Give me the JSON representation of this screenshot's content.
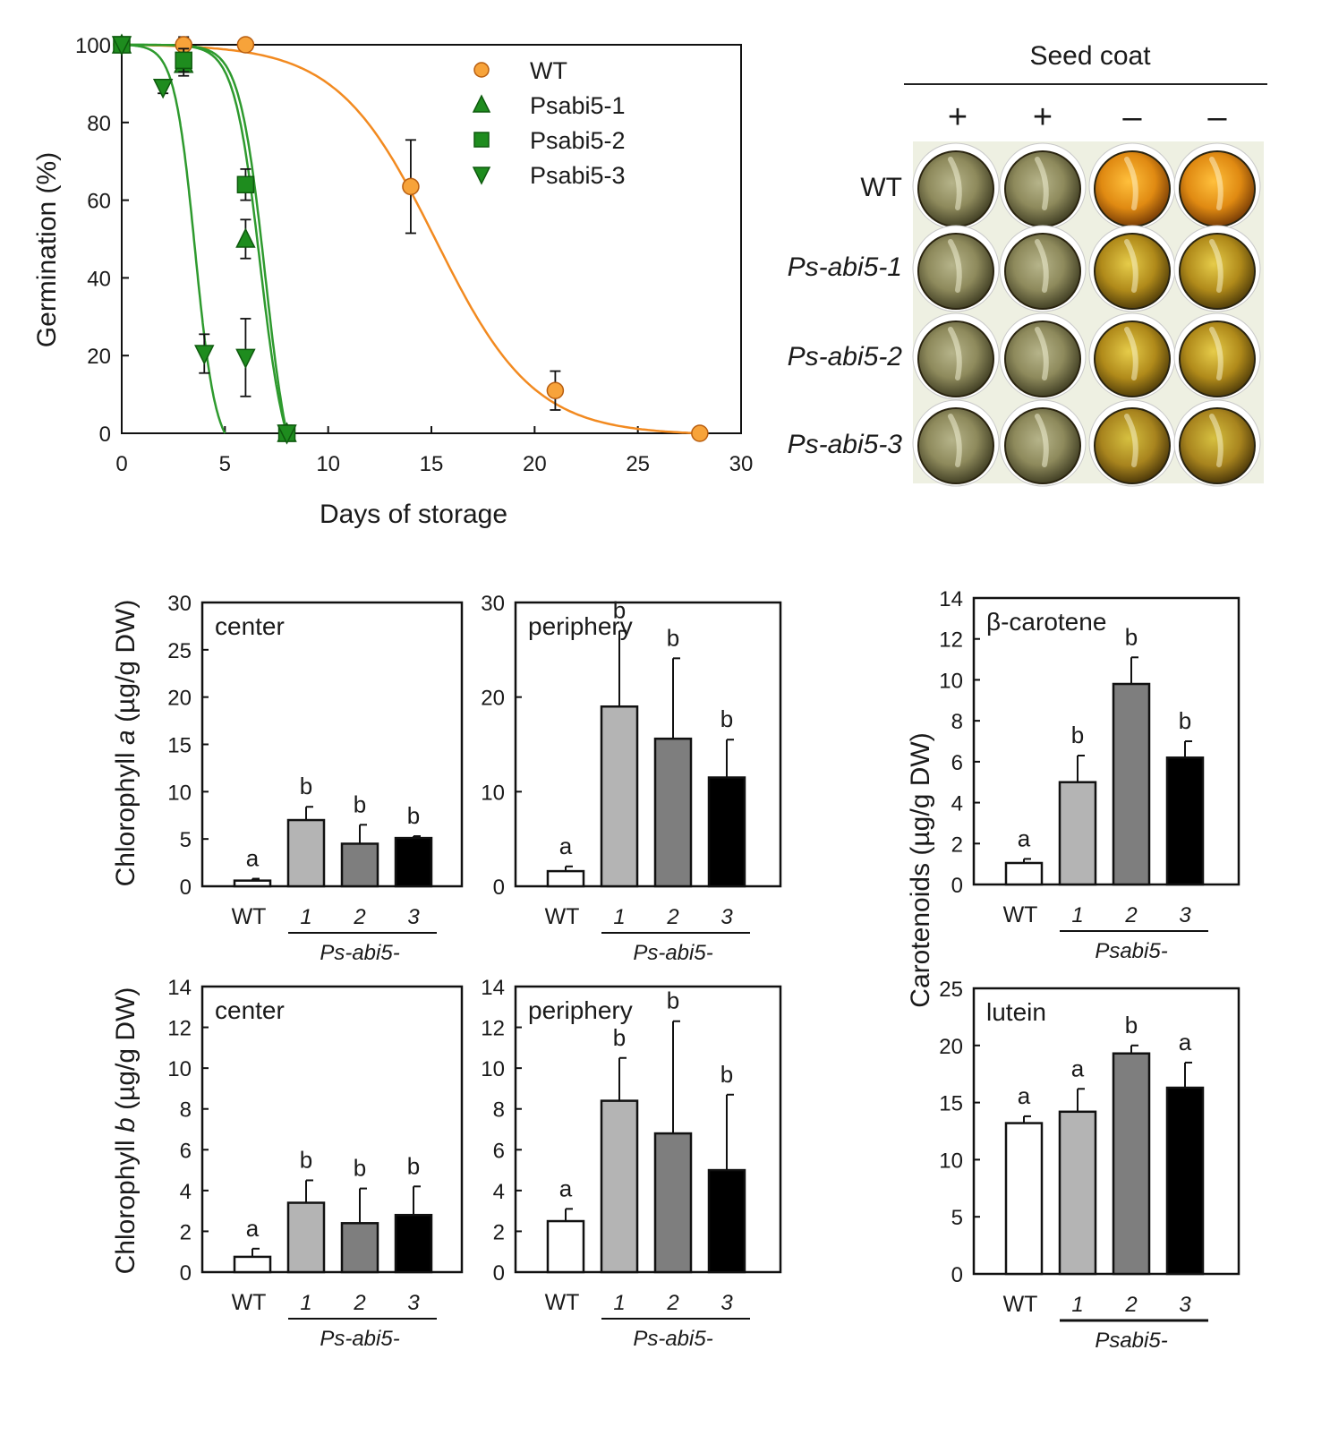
{
  "colors": {
    "wt_line": "#f28a20",
    "wt_marker": "#f7a33a",
    "mutant_line": "#2e9a2e",
    "mutant_marker": "#1e8c1e",
    "bar_wt": "#ffffff",
    "bar_1": "#b4b4b4",
    "bar_2": "#7e7e7e",
    "bar_3": "#000000"
  },
  "chart_data": [
    {
      "id": "germination",
      "type": "scatter",
      "title": "",
      "xlabel": "Days of storage",
      "ylabel": "Germination (%)",
      "xlim": [
        0,
        30
      ],
      "ylim": [
        0,
        100
      ],
      "xticks": [
        "0",
        "5",
        "10",
        "15",
        "20",
        "25",
        "30"
      ],
      "yticks": [
        "0",
        "20",
        "40",
        "60",
        "80",
        "100"
      ],
      "legend_position": "top-right",
      "series": [
        {
          "name": "WT",
          "marker": "circle",
          "x": [
            0,
            3,
            6,
            14,
            21,
            28
          ],
          "y": [
            100,
            100,
            100,
            63.5,
            11,
            0
          ],
          "err": [
            0,
            2,
            0,
            12,
            5,
            0
          ],
          "fit": {
            "midpoint": 15.2,
            "slope": 0.42
          }
        },
        {
          "name": "Psabi5-1",
          "marker": "triangle-up",
          "x": [
            0,
            3,
            6,
            8
          ],
          "y": [
            100,
            95,
            50,
            0
          ],
          "err": [
            0,
            3,
            5,
            2
          ],
          "fit": {
            "midpoint": 6.7,
            "slope": 1.6
          }
        },
        {
          "name": "Psabi5-2",
          "marker": "square",
          "x": [
            0,
            3,
            6,
            8
          ],
          "y": [
            100,
            96,
            64,
            0
          ],
          "err": [
            0,
            3,
            4,
            2
          ],
          "fit": {
            "midpoint": 6.95,
            "slope": 1.6
          }
        },
        {
          "name": "Psabi5-3",
          "marker": "triangle-down",
          "x": [
            0,
            2,
            4,
            6,
            8
          ],
          "y": [
            100,
            89,
            20.5,
            19.5,
            0
          ],
          "err": [
            0,
            1.5,
            5,
            10,
            2
          ],
          "fit": {
            "midpoint": 3.55,
            "slope": 2.0
          }
        }
      ]
    },
    {
      "id": "chla_center",
      "type": "bar",
      "title": "center",
      "ylabel": "Chlorophyll a (µg/g DW)",
      "ylabel_plain": "Chlorophyll ",
      "ylabel_italic": "a",
      "ylabel_rest": " (µg/g DW)",
      "ylim": [
        0,
        30
      ],
      "yticks": [
        "0",
        "5",
        "10",
        "15",
        "20",
        "25",
        "30"
      ],
      "categories": [
        "WT",
        "1",
        "2",
        "3"
      ],
      "genotype_label": "Ps-abi5-",
      "values": [
        0.6,
        7.0,
        4.5,
        5.1
      ],
      "errors": [
        0.2,
        1.4,
        2.0,
        0.2
      ],
      "letters": [
        "a",
        "b",
        "b",
        "b"
      ]
    },
    {
      "id": "chla_periphery",
      "type": "bar",
      "title": "periphery",
      "ylim": [
        0,
        30
      ],
      "yticks": [
        "0",
        "10",
        "20",
        "30"
      ],
      "categories": [
        "WT",
        "1",
        "2",
        "3"
      ],
      "genotype_label": "Ps-abi5-",
      "values": [
        1.6,
        19.0,
        15.6,
        11.5
      ],
      "errors": [
        0.5,
        8.0,
        8.5,
        4.0
      ],
      "letters": [
        "a",
        "b",
        "b",
        "b"
      ]
    },
    {
      "id": "chlb_center",
      "type": "bar",
      "title": "center",
      "ylabel": "Chlorophyll b (µg/g DW)",
      "ylabel_plain": "Chlorophyll ",
      "ylabel_italic": "b",
      "ylabel_rest": " (µg/g DW)",
      "ylim": [
        0,
        14
      ],
      "yticks": [
        "0",
        "2",
        "4",
        "6",
        "8",
        "10",
        "12",
        "14"
      ],
      "categories": [
        "WT",
        "1",
        "2",
        "3"
      ],
      "genotype_label": "Ps-abi5-",
      "values": [
        0.75,
        3.4,
        2.4,
        2.8
      ],
      "errors": [
        0.4,
        1.1,
        1.7,
        1.4
      ],
      "letters": [
        "a",
        "b",
        "b",
        "b"
      ]
    },
    {
      "id": "chlb_periphery",
      "type": "bar",
      "title": "periphery",
      "ylim": [
        0,
        14
      ],
      "yticks": [
        "0",
        "2",
        "4",
        "6",
        "8",
        "10",
        "12",
        "14"
      ],
      "categories": [
        "WT",
        "1",
        "2",
        "3"
      ],
      "genotype_label": "Ps-abi5-",
      "values": [
        2.5,
        8.4,
        6.8,
        5.0
      ],
      "errors": [
        0.6,
        2.1,
        5.5,
        3.7
      ],
      "letters": [
        "a",
        "b",
        "b",
        "b"
      ]
    },
    {
      "id": "betacarotene",
      "type": "bar",
      "title": "β-carotene",
      "ylabel": "Carotenoids (µg/g DW)",
      "ylim": [
        0,
        14
      ],
      "yticks": [
        "0",
        "2",
        "4",
        "6",
        "8",
        "10",
        "12",
        "14"
      ],
      "categories": [
        "WT",
        "1",
        "2",
        "3"
      ],
      "genotype_label": "Psabi5-",
      "values": [
        1.05,
        5.0,
        9.8,
        6.2
      ],
      "errors": [
        0.2,
        1.3,
        1.3,
        0.8
      ],
      "letters": [
        "a",
        "b",
        "b",
        "b"
      ]
    },
    {
      "id": "lutein",
      "type": "bar",
      "title": "lutein",
      "ylim": [
        0,
        25
      ],
      "yticks": [
        "0",
        "5",
        "10",
        "15",
        "20",
        "25"
      ],
      "categories": [
        "WT",
        "1",
        "2",
        "3"
      ],
      "genotype_label": "Psabi5-",
      "values": [
        13.2,
        14.2,
        19.3,
        16.3
      ],
      "errors": [
        0.6,
        2.0,
        0.7,
        2.2
      ],
      "letters": [
        "a",
        "a",
        "b",
        "a"
      ]
    }
  ],
  "seed_panel": {
    "header": "Seed coat",
    "columns": [
      "+",
      "+",
      "–",
      "–"
    ],
    "rows": [
      {
        "label": "WT",
        "italic": false
      },
      {
        "label": "Ps-abi5-1",
        "italic": true
      },
      {
        "label": "Ps-abi5-2",
        "italic": true
      },
      {
        "label": "Ps-abi5-3",
        "italic": true
      }
    ]
  }
}
